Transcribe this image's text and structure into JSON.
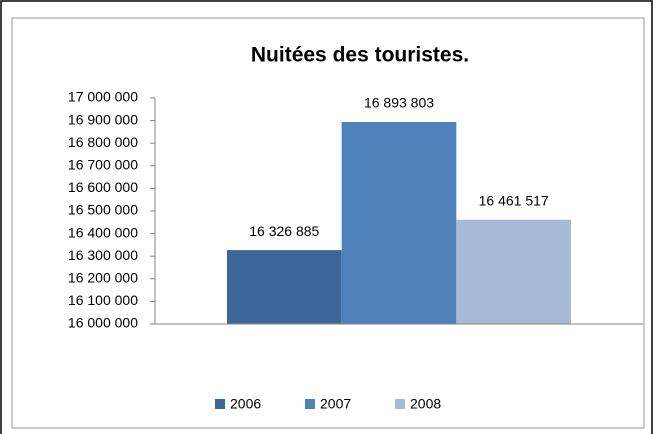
{
  "chart_data": {
    "type": "bar",
    "title": "Nuitées des touristes.",
    "categories": [
      null
    ],
    "series": [
      {
        "name": "2006",
        "color": "#3d6699",
        "values": [
          16326885
        ],
        "value_labels": [
          "16 326 885"
        ]
      },
      {
        "name": "2007",
        "color": "#4f81bd",
        "values": [
          16893803
        ],
        "value_labels": [
          "16 893 803"
        ]
      },
      {
        "name": "2008",
        "color": "#a9b9d8",
        "values": [
          16461517
        ],
        "value_labels": [
          "16 461 517"
        ]
      }
    ],
    "ylim": [
      16000000,
      17000000
    ],
    "yticks": [
      {
        "value": 16000000,
        "label": "16 000 000"
      },
      {
        "value": 16100000,
        "label": "16 100 000"
      },
      {
        "value": 16200000,
        "label": "16 200 000"
      },
      {
        "value": 16300000,
        "label": "16 300 000"
      },
      {
        "value": 16400000,
        "label": "16 400 000"
      },
      {
        "value": 16500000,
        "label": "16 500 000"
      },
      {
        "value": 16600000,
        "label": "16 600 000"
      },
      {
        "value": 16700000,
        "label": "16 700 000"
      },
      {
        "value": 16800000,
        "label": "16 800 000"
      },
      {
        "value": 16900000,
        "label": "16 900 000"
      },
      {
        "value": 17000000,
        "label": "17 000 000"
      }
    ],
    "legend": "bottom"
  }
}
